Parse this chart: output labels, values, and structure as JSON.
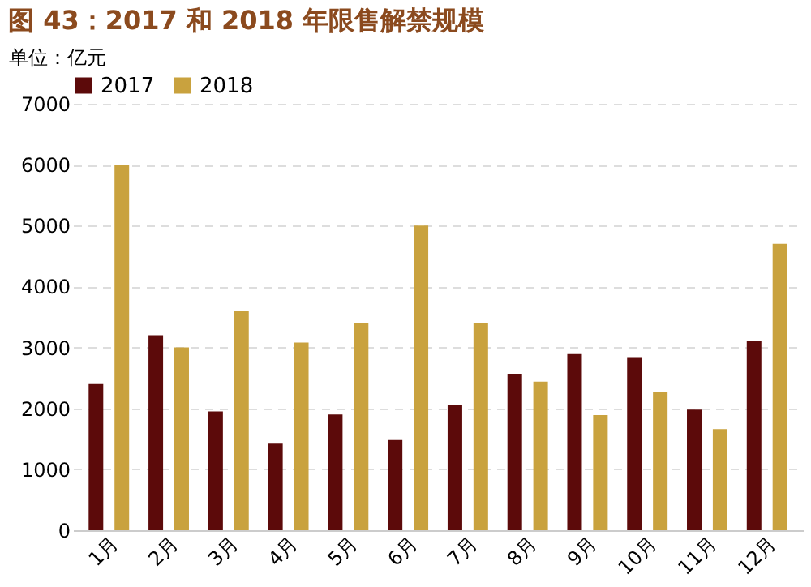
{
  "chart_data": {
    "type": "bar",
    "title": "图 43：2017 和 2018 年限售解禁规模",
    "ylabel": "单位：亿元",
    "categories": [
      "1月",
      "2月",
      "3月",
      "4月",
      "5月",
      "6月",
      "7月",
      "8月",
      "9月",
      "10月",
      "11月",
      "12月"
    ],
    "series": [
      {
        "name": "2017",
        "color": "#5c0a0a",
        "values": [
          2400,
          3200,
          1950,
          1420,
          1900,
          1480,
          2050,
          2570,
          2890,
          2840,
          1980,
          3100
        ]
      },
      {
        "name": "2018",
        "color": "#c9a23e",
        "values": [
          6000,
          3000,
          3600,
          3080,
          3400,
          5000,
          3400,
          2440,
          1890,
          2270,
          1660,
          4700
        ]
      }
    ],
    "ylim": [
      0,
      7000
    ],
    "yticks": [
      0,
      1000,
      2000,
      3000,
      4000,
      5000,
      6000,
      7000
    ],
    "grid": "y",
    "legend": "top"
  }
}
